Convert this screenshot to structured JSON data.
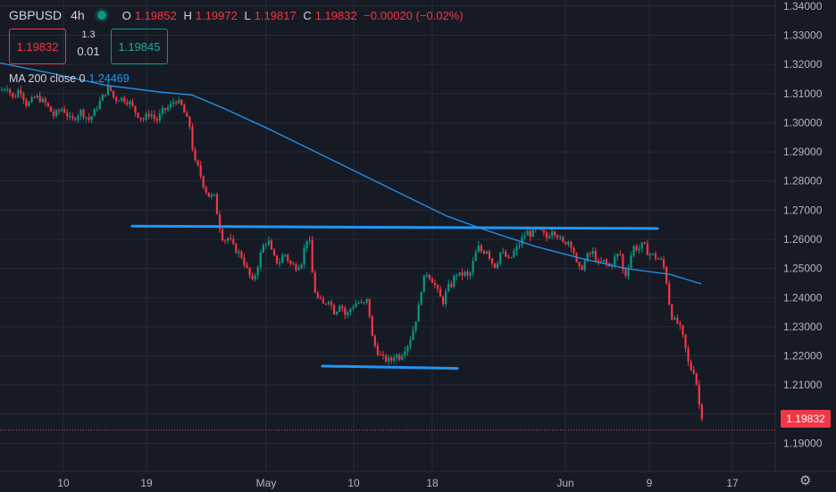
{
  "header": {
    "symbol": "GBPUSD",
    "timeframe": "4h",
    "open_label": "O",
    "open": "1.19852",
    "high_label": "H",
    "high": "1.19972",
    "low_label": "L",
    "low": "1.19817",
    "close_label": "C",
    "close": "1.19832",
    "change": "−0.00020 (−0.02%)",
    "status_color": "#089981"
  },
  "trade_panel": {
    "sell_price": "1.19832",
    "spread": "1.3",
    "quantity": "0.01",
    "buy_price": "1.19845"
  },
  "indicator": {
    "label": "MA 200 close 0",
    "value": "1.24469",
    "color": "#2196f3"
  },
  "last_price_tag": "1.19832",
  "colors": {
    "background": "#161a25",
    "up": "#089981",
    "down": "#f23645",
    "ma": "#2196f3",
    "trendline": "#2196f3",
    "grid": "#262a36"
  },
  "chart_data": {
    "type": "candlestick",
    "symbol": "GBPUSD",
    "timeframe": "4h",
    "x_tick_labels": [
      "10",
      "19",
      "May",
      "10",
      "18",
      "Jun",
      "9",
      "17"
    ],
    "y_tick_labels": [
      "1.19000",
      "1.20000",
      "1.21000",
      "1.22000",
      "1.23000",
      "1.24000",
      "1.25000",
      "1.26000",
      "1.27000",
      "1.28000",
      "1.29000",
      "1.30000",
      "1.31000",
      "1.32000",
      "1.33000",
      "1.34000"
    ],
    "ylim": [
      1.186,
      1.3415
    ],
    "price_path": [
      [
        0,
        1.311
      ],
      [
        8,
        1.3125
      ],
      [
        15,
        1.308
      ],
      [
        22,
        1.312
      ],
      [
        30,
        1.306
      ],
      [
        40,
        1.309
      ],
      [
        50,
        1.307
      ],
      [
        60,
        1.3025
      ],
      [
        70,
        1.305
      ],
      [
        80,
        1.3005
      ],
      [
        90,
        1.304
      ],
      [
        100,
        1.301
      ],
      [
        107,
        1.3045
      ],
      [
        115,
        1.309
      ],
      [
        122,
        1.3125
      ],
      [
        128,
        1.308
      ],
      [
        135,
        1.3085
      ],
      [
        145,
        1.307
      ],
      [
        152,
        1.3035
      ],
      [
        160,
        1.301
      ],
      [
        168,
        1.3035
      ],
      [
        175,
        1.3005
      ],
      [
        182,
        1.304
      ],
      [
        190,
        1.3055
      ],
      [
        196,
        1.308
      ],
      [
        203,
        1.306
      ],
      [
        208,
        1.302
      ],
      [
        213,
        1.2985
      ],
      [
        217,
        1.287
      ],
      [
        222,
        1.2845
      ],
      [
        228,
        1.2785
      ],
      [
        233,
        1.275
      ],
      [
        240,
        1.2745
      ],
      [
        245,
        1.2655
      ],
      [
        250,
        1.2595
      ],
      [
        256,
        1.2605
      ],
      [
        263,
        1.2565
      ],
      [
        270,
        1.2545
      ],
      [
        276,
        1.25
      ],
      [
        283,
        1.245
      ],
      [
        288,
        1.2505
      ],
      [
        294,
        1.2575
      ],
      [
        300,
        1.26
      ],
      [
        305,
        1.2545
      ],
      [
        312,
        1.2515
      ],
      [
        318,
        1.2555
      ],
      [
        325,
        1.2515
      ],
      [
        332,
        1.2505
      ],
      [
        338,
        1.2525
      ],
      [
        343,
        1.2605
      ],
      [
        347,
        1.2585
      ],
      [
        351,
        1.2435
      ],
      [
        356,
        1.2395
      ],
      [
        362,
        1.2375
      ],
      [
        368,
        1.2395
      ],
      [
        375,
        1.2345
      ],
      [
        381,
        1.2385
      ],
      [
        387,
        1.2335
      ],
      [
        393,
        1.2365
      ],
      [
        400,
        1.2385
      ],
      [
        407,
        1.2375
      ],
      [
        412,
        1.2395
      ],
      [
        416,
        1.227
      ],
      [
        421,
        1.2225
      ],
      [
        427,
        1.2195
      ],
      [
        433,
        1.2185
      ],
      [
        438,
        1.2185
      ],
      [
        442,
        1.2205
      ],
      [
        448,
        1.2195
      ],
      [
        453,
        1.2225
      ],
      [
        458,
        1.2245
      ],
      [
        463,
        1.2295
      ],
      [
        468,
        1.2355
      ],
      [
        473,
        1.2455
      ],
      [
        478,
        1.2485
      ],
      [
        483,
        1.2465
      ],
      [
        488,
        1.2435
      ],
      [
        492,
        1.2405
      ],
      [
        496,
        1.2385
      ],
      [
        501,
        1.2435
      ],
      [
        506,
        1.2445
      ],
      [
        510,
        1.2485
      ],
      [
        515,
        1.2475
      ],
      [
        520,
        1.2485
      ],
      [
        525,
        1.2465
      ],
      [
        530,
        1.2525
      ],
      [
        535,
        1.2575
      ],
      [
        540,
        1.2555
      ],
      [
        545,
        1.2565
      ],
      [
        550,
        1.2525
      ],
      [
        555,
        1.2505
      ],
      [
        560,
        1.2555
      ],
      [
        565,
        1.2545
      ],
      [
        570,
        1.2525
      ],
      [
        575,
        1.2555
      ],
      [
        580,
        1.2575
      ],
      [
        585,
        1.2605
      ],
      [
        590,
        1.2625
      ],
      [
        595,
        1.2615
      ],
      [
        600,
        1.2635
      ],
      [
        606,
        1.2625
      ],
      [
        612,
        1.2605
      ],
      [
        618,
        1.2635
      ],
      [
        624,
        1.2615
      ],
      [
        630,
        1.2585
      ],
      [
        636,
        1.2595
      ],
      [
        641,
        1.2575
      ],
      [
        647,
        1.2495
      ],
      [
        652,
        1.2505
      ],
      [
        658,
        1.2545
      ],
      [
        664,
        1.2555
      ],
      [
        670,
        1.2515
      ],
      [
        676,
        1.2525
      ],
      [
        682,
        1.2505
      ],
      [
        688,
        1.2535
      ],
      [
        694,
        1.2555
      ],
      [
        699,
        1.2465
      ],
      [
        703,
        1.2505
      ],
      [
        709,
        1.2575
      ],
      [
        715,
        1.2565
      ],
      [
        720,
        1.2585
      ],
      [
        725,
        1.2555
      ],
      [
        731,
        1.2545
      ],
      [
        736,
        1.2535
      ],
      [
        741,
        1.2525
      ],
      [
        745,
        1.2485
      ],
      [
        749,
        1.2385
      ],
      [
        753,
        1.2325
      ],
      [
        758,
        1.2315
      ],
      [
        763,
        1.2285
      ],
      [
        768,
        1.2215
      ],
      [
        772,
        1.2155
      ],
      [
        776,
        1.2155
      ],
      [
        779,
        1.2125
      ],
      [
        782,
        1.2045
      ],
      [
        786,
        1.1983
      ]
    ],
    "ma200_path": [
      [
        0,
        1.3205
      ],
      [
        60,
        1.3168
      ],
      [
        120,
        1.3128
      ],
      [
        180,
        1.3105
      ],
      [
        215,
        1.3095
      ],
      [
        250,
        1.305
      ],
      [
        300,
        1.298
      ],
      [
        350,
        1.2905
      ],
      [
        400,
        1.283
      ],
      [
        450,
        1.2755
      ],
      [
        500,
        1.268
      ],
      [
        550,
        1.2625
      ],
      [
        600,
        1.2575
      ],
      [
        650,
        1.2535
      ],
      [
        700,
        1.25
      ],
      [
        750,
        1.248
      ],
      [
        785,
        1.2447
      ]
    ],
    "horizontal_lines": [
      {
        "x": [
          148,
          736
        ],
        "y": [
          1.2645,
          1.2637
        ]
      },
      {
        "x": [
          361,
          512
        ],
        "y": [
          1.2165,
          1.2157
        ]
      }
    ],
    "last_price": 1.19832,
    "grid": true
  }
}
